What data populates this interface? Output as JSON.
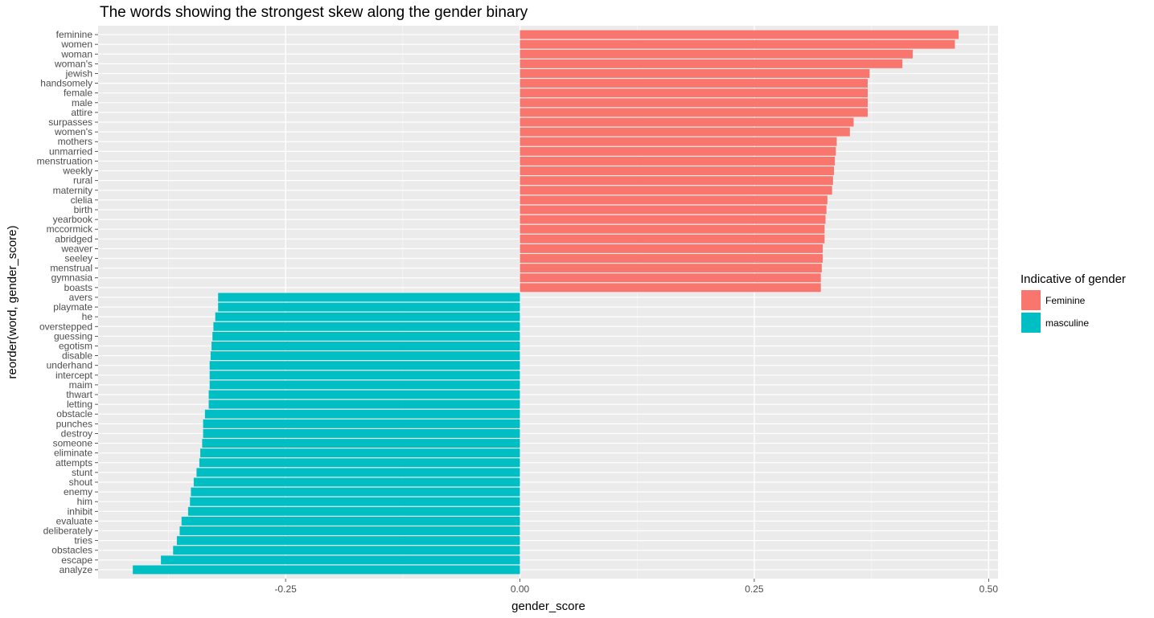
{
  "chart_data": {
    "type": "bar",
    "orientation": "horizontal",
    "title": "The words showing the strongest skew along the gender binary",
    "xlabel": "gender_score",
    "ylabel": "reorder(word, gender_score)",
    "xlim": [
      -0.45,
      0.51
    ],
    "x_ticks": [
      -0.25,
      0.0,
      0.25,
      0.5
    ],
    "x_tick_labels": [
      "-0.25",
      "0.00",
      "0.25",
      "0.50"
    ],
    "grid": true,
    "legend": {
      "title": "Indicative of gender",
      "position": "right",
      "entries": [
        {
          "label": "Feminine",
          "color": "#F8766D"
        },
        {
          "label": "masculine",
          "color": "#00BFC4"
        }
      ]
    },
    "bars": [
      {
        "word": "feminine",
        "value": 0.468,
        "group": "Feminine"
      },
      {
        "word": "women",
        "value": 0.464,
        "group": "Feminine"
      },
      {
        "word": "woman",
        "value": 0.419,
        "group": "Feminine"
      },
      {
        "word": "woman's",
        "value": 0.408,
        "group": "Feminine"
      },
      {
        "word": "jewish",
        "value": 0.373,
        "group": "Feminine"
      },
      {
        "word": "handsomely",
        "value": 0.371,
        "group": "Feminine"
      },
      {
        "word": "female",
        "value": 0.371,
        "group": "Feminine"
      },
      {
        "word": "male",
        "value": 0.371,
        "group": "Feminine"
      },
      {
        "word": "attire",
        "value": 0.371,
        "group": "Feminine"
      },
      {
        "word": "surpasses",
        "value": 0.356,
        "group": "Feminine"
      },
      {
        "word": "women's",
        "value": 0.352,
        "group": "Feminine"
      },
      {
        "word": "mothers",
        "value": 0.338,
        "group": "Feminine"
      },
      {
        "word": "unmarried",
        "value": 0.337,
        "group": "Feminine"
      },
      {
        "word": "menstruation",
        "value": 0.336,
        "group": "Feminine"
      },
      {
        "word": "weekly",
        "value": 0.335,
        "group": "Feminine"
      },
      {
        "word": "rural",
        "value": 0.334,
        "group": "Feminine"
      },
      {
        "word": "maternity",
        "value": 0.333,
        "group": "Feminine"
      },
      {
        "word": "clelia",
        "value": 0.328,
        "group": "Feminine"
      },
      {
        "word": "birth",
        "value": 0.327,
        "group": "Feminine"
      },
      {
        "word": "yearbook",
        "value": 0.326,
        "group": "Feminine"
      },
      {
        "word": "mccormick",
        "value": 0.325,
        "group": "Feminine"
      },
      {
        "word": "abridged",
        "value": 0.325,
        "group": "Feminine"
      },
      {
        "word": "weaver",
        "value": 0.323,
        "group": "Feminine"
      },
      {
        "word": "seeley",
        "value": 0.323,
        "group": "Feminine"
      },
      {
        "word": "menstrual",
        "value": 0.322,
        "group": "Feminine"
      },
      {
        "word": "gymnasia",
        "value": 0.321,
        "group": "Feminine"
      },
      {
        "word": "boasts",
        "value": 0.321,
        "group": "Feminine"
      },
      {
        "word": "avers",
        "value": -0.322,
        "group": "masculine"
      },
      {
        "word": "playmate",
        "value": -0.322,
        "group": "masculine"
      },
      {
        "word": "he",
        "value": -0.325,
        "group": "masculine"
      },
      {
        "word": "overstepped",
        "value": -0.327,
        "group": "masculine"
      },
      {
        "word": "guessing",
        "value": -0.328,
        "group": "masculine"
      },
      {
        "word": "egotism",
        "value": -0.329,
        "group": "masculine"
      },
      {
        "word": "disable",
        "value": -0.33,
        "group": "masculine"
      },
      {
        "word": "underhand",
        "value": -0.331,
        "group": "masculine"
      },
      {
        "word": "intercept",
        "value": -0.331,
        "group": "masculine"
      },
      {
        "word": "maim",
        "value": -0.331,
        "group": "masculine"
      },
      {
        "word": "thwart",
        "value": -0.332,
        "group": "masculine"
      },
      {
        "word": "letting",
        "value": -0.332,
        "group": "masculine"
      },
      {
        "word": "obstacle",
        "value": -0.336,
        "group": "masculine"
      },
      {
        "word": "punches",
        "value": -0.338,
        "group": "masculine"
      },
      {
        "word": "destroy",
        "value": -0.338,
        "group": "masculine"
      },
      {
        "word": "someone",
        "value": -0.339,
        "group": "masculine"
      },
      {
        "word": "eliminate",
        "value": -0.341,
        "group": "masculine"
      },
      {
        "word": "attempts",
        "value": -0.342,
        "group": "masculine"
      },
      {
        "word": "stunt",
        "value": -0.345,
        "group": "masculine"
      },
      {
        "word": "shout",
        "value": -0.348,
        "group": "masculine"
      },
      {
        "word": "enemy",
        "value": -0.351,
        "group": "masculine"
      },
      {
        "word": "him",
        "value": -0.352,
        "group": "masculine"
      },
      {
        "word": "inhibit",
        "value": -0.354,
        "group": "masculine"
      },
      {
        "word": "evaluate",
        "value": -0.361,
        "group": "masculine"
      },
      {
        "word": "deliberately",
        "value": -0.363,
        "group": "masculine"
      },
      {
        "word": "tries",
        "value": -0.366,
        "group": "masculine"
      },
      {
        "word": "obstacles",
        "value": -0.37,
        "group": "masculine"
      },
      {
        "word": "escape",
        "value": -0.383,
        "group": "masculine"
      },
      {
        "word": "analyze",
        "value": -0.413,
        "group": "masculine"
      }
    ]
  }
}
